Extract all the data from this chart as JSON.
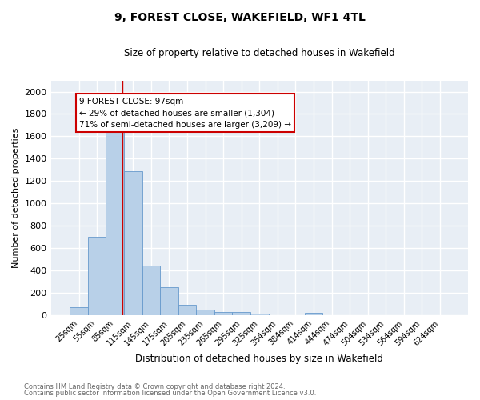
{
  "title": "9, FOREST CLOSE, WAKEFIELD, WF1 4TL",
  "subtitle": "Size of property relative to detached houses in Wakefield",
  "xlabel": "Distribution of detached houses by size in Wakefield",
  "ylabel": "Number of detached properties",
  "bar_color": "#b8d0e8",
  "bar_edge_color": "#6699cc",
  "background_color": "#e8eef5",
  "grid_color": "#ffffff",
  "categories": [
    "25sqm",
    "55sqm",
    "85sqm",
    "115sqm",
    "145sqm",
    "175sqm",
    "205sqm",
    "235sqm",
    "265sqm",
    "295sqm",
    "325sqm",
    "354sqm",
    "384sqm",
    "414sqm",
    "444sqm",
    "474sqm",
    "504sqm",
    "534sqm",
    "564sqm",
    "594sqm",
    "624sqm"
  ],
  "values": [
    68,
    700,
    1640,
    1285,
    440,
    253,
    95,
    52,
    30,
    28,
    17,
    0,
    0,
    20,
    0,
    0,
    0,
    0,
    0,
    0,
    0
  ],
  "ylim": [
    0,
    2100
  ],
  "yticks": [
    0,
    200,
    400,
    600,
    800,
    1000,
    1200,
    1400,
    1600,
    1800,
    2000
  ],
  "red_line_x": 2.4,
  "annotation_title": "9 FOREST CLOSE: 97sqm",
  "annotation_line1": "← 29% of detached houses are smaller (1,304)",
  "annotation_line2": "71% of semi-detached houses are larger (3,209) →",
  "annotation_box_color": "#ffffff",
  "annotation_border_color": "#cc0000",
  "footnote1": "Contains HM Land Registry data © Crown copyright and database right 2024.",
  "footnote2": "Contains public sector information licensed under the Open Government Licence v3.0."
}
